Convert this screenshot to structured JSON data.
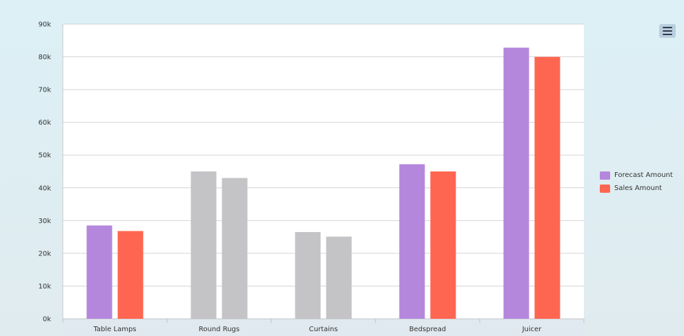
{
  "chart_data": {
    "type": "bar",
    "categories": [
      "Table Lamps",
      "Round Rugs",
      "Curtains",
      "Bedspread",
      "Juicer"
    ],
    "series": [
      {
        "name": "Forecast Amount",
        "color": "#b587dc",
        "values": [
          28500,
          45000,
          26500,
          47200,
          82800
        ]
      },
      {
        "name": "Sales Amount",
        "color": "#ff6652",
        "values": [
          26800,
          43000,
          25100,
          45000,
          80000
        ]
      }
    ],
    "dimmed_color": "#c4c3c6",
    "dimmed_categories": [
      "Round Rugs",
      "Curtains"
    ],
    "ylim": [
      0,
      90000
    ],
    "yticks": [
      "0k",
      "10k",
      "20k",
      "30k",
      "40k",
      "50k",
      "60k",
      "70k",
      "80k",
      "90k"
    ],
    "grid": true,
    "legend_position": "right"
  },
  "menu": {
    "icon": "hamburger-menu-icon"
  }
}
